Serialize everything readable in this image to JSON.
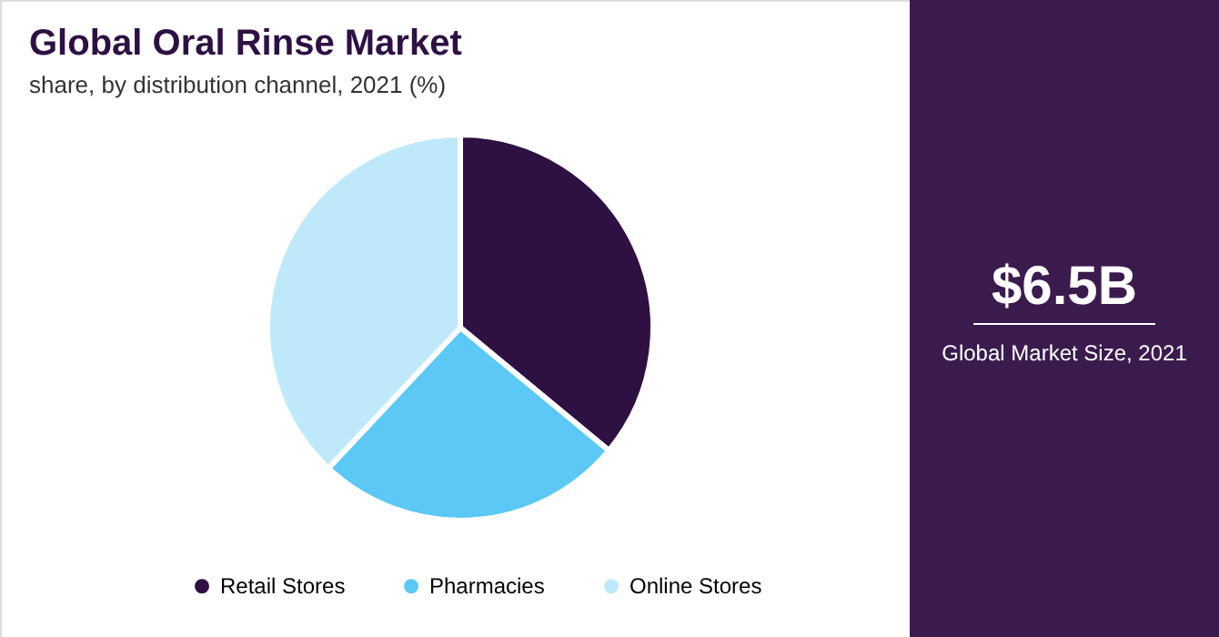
{
  "chart_data": {
    "type": "pie",
    "title": "Global Oral Rinse Market",
    "subtitle": "share, by distribution channel, 2021 (%)",
    "categories": [
      "Retail Stores",
      "Pharmacies",
      "Online Stores"
    ],
    "values": [
      36,
      26,
      38
    ],
    "colors": [
      "#2e1043",
      "#5bc8f5",
      "#bfe9fa"
    ],
    "legend": "bottom",
    "annotations": [
      "$6.5B",
      "Global Market Size, 2021"
    ]
  }
}
